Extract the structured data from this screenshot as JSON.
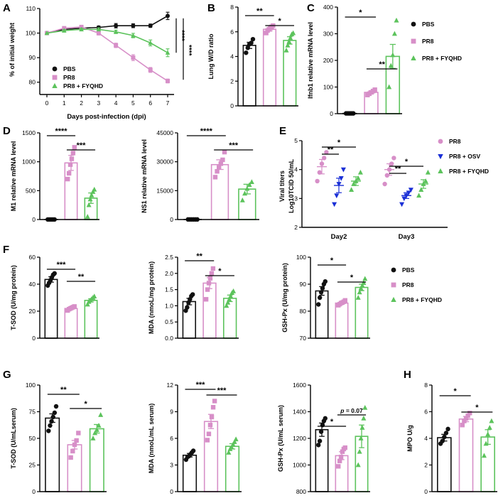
{
  "colors": {
    "pbs": "#111111",
    "pr8": "#d78fc8",
    "fyqhd": "#5cc35c",
    "osv": "#1a2fd6"
  },
  "chart_data": [
    {
      "id": "A",
      "panel": "A",
      "type": "line",
      "title": "",
      "xlabel": "Days post-infection (dpi)",
      "ylabel": "% of initial weight",
      "ylim": [
        75,
        110
      ],
      "yticks": [
        80,
        90,
        100,
        110
      ],
      "xticks": [
        0,
        1,
        2,
        3,
        4,
        5,
        6,
        7
      ],
      "series": [
        {
          "name": "PBS",
          "color": "pbs",
          "marker": "circle",
          "x": [
            0,
            1,
            2,
            3,
            4,
            5,
            6,
            7
          ],
          "y": [
            100,
            101.5,
            102,
            102.3,
            103,
            103,
            103,
            107
          ],
          "err": [
            0,
            0.5,
            0.5,
            0.6,
            0.9,
            0.8,
            0.7,
            1.5
          ]
        },
        {
          "name": "PR8",
          "color": "pr8",
          "marker": "square",
          "x": [
            0,
            1,
            2,
            3,
            4,
            5,
            6,
            7
          ],
          "y": [
            100,
            102,
            102.5,
            100,
            95,
            90,
            85,
            80.5
          ],
          "err": [
            0,
            0.6,
            0.6,
            0.8,
            0.9,
            1.2,
            1.0,
            0.8
          ]
        },
        {
          "name": "PR8 + FYQHD",
          "color": "fyqhd",
          "marker": "triangle",
          "x": [
            0,
            1,
            2,
            3,
            4,
            5,
            6,
            7
          ],
          "y": [
            100,
            101,
            101.5,
            101.5,
            100.5,
            99,
            96,
            92
          ],
          "err": [
            0,
            0.5,
            0.5,
            0.6,
            0.7,
            0.9,
            1.2,
            1.6
          ]
        }
      ],
      "annotations": [
        "****",
        "****"
      ]
    },
    {
      "id": "B",
      "panel": "B",
      "type": "bar",
      "title": "",
      "ylabel": "Lung W/D ratio",
      "ylim": [
        0,
        8
      ],
      "yticks": [
        0,
        2,
        4,
        6,
        8
      ],
      "series": [
        {
          "name": "PBS",
          "color": "pbs",
          "marker": "circle",
          "mean": 4.9,
          "sem": 0.25,
          "points": [
            4.3,
            4.7,
            5.0,
            5.1,
            5.4
          ]
        },
        {
          "name": "PR8",
          "color": "pr8",
          "marker": "square",
          "mean": 6.2,
          "sem": 0.15,
          "points": [
            5.9,
            6.1,
            6.2,
            6.3,
            6.4,
            6.5
          ]
        },
        {
          "name": "PR8 + FYQHD",
          "color": "fyqhd",
          "marker": "triangle",
          "mean": 5.3,
          "sem": 0.3,
          "points": [
            4.5,
            4.9,
            5.2,
            5.5,
            5.8,
            5.9
          ]
        }
      ],
      "sig": [
        {
          "a": 0,
          "b": 1,
          "label": "**"
        },
        {
          "a": 1,
          "b": 2,
          "label": "*"
        }
      ]
    },
    {
      "id": "C",
      "panel": "C",
      "type": "bar",
      "title": "",
      "ylabel": "Ifnb1 relative mRNA level",
      "ylim": [
        0,
        400
      ],
      "yticks": [
        0,
        100,
        200,
        300,
        400
      ],
      "series": [
        {
          "name": "PBS",
          "color": "pbs",
          "marker": "circle",
          "mean": 1,
          "sem": 0.5,
          "points": [
            1,
            1,
            1,
            1,
            1,
            1
          ]
        },
        {
          "name": "PR8",
          "color": "pr8",
          "marker": "square",
          "mean": 80,
          "sem": 5,
          "points": [
            70,
            75,
            80,
            85,
            90
          ]
        },
        {
          "name": "PR8 + FYQHD",
          "color": "fyqhd",
          "marker": "triangle",
          "mean": 215,
          "sem": 45,
          "points": [
            100,
            180,
            220,
            300,
            350
          ]
        }
      ],
      "sig": [
        {
          "a": 0,
          "b": 1,
          "label": "*"
        },
        {
          "a": 1,
          "b": 2,
          "label": "**"
        }
      ],
      "legend": [
        "PBS",
        "PR8",
        "PR8 + FYQHD"
      ]
    },
    {
      "id": "D1",
      "panel": "D",
      "type": "bar",
      "title": "",
      "ylabel": "M1 relative mRNA level",
      "ylim": [
        0,
        1500
      ],
      "yticks": [
        0,
        500,
        1000,
        1500
      ],
      "series": [
        {
          "name": "PBS",
          "color": "pbs",
          "marker": "circle",
          "mean": 1,
          "sem": 0.5,
          "points": [
            1,
            1,
            1,
            1,
            1,
            1
          ]
        },
        {
          "name": "PR8",
          "color": "pr8",
          "marker": "square",
          "mean": 980,
          "sem": 130,
          "points": [
            700,
            800,
            950,
            1050,
            1150,
            1250
          ]
        },
        {
          "name": "PR8 + FYQHD",
          "color": "fyqhd",
          "marker": "triangle",
          "mean": 370,
          "sem": 90,
          "points": [
            50,
            250,
            350,
            420,
            480,
            520
          ]
        }
      ],
      "sig": [
        {
          "a": 0,
          "b": 1,
          "label": "****"
        },
        {
          "a": 1,
          "b": 2,
          "label": "***"
        }
      ]
    },
    {
      "id": "D2",
      "panel": "",
      "type": "bar",
      "title": "",
      "ylabel": "NS1 relative mRNA level",
      "ylim": [
        0,
        45000
      ],
      "yticks": [
        0,
        15000,
        30000,
        45000
      ],
      "series": [
        {
          "name": "PBS",
          "color": "pbs",
          "marker": "circle",
          "mean": 50,
          "sem": 20,
          "points": [
            50,
            50,
            50,
            50,
            50,
            50
          ]
        },
        {
          "name": "PR8",
          "color": "pr8",
          "marker": "square",
          "mean": 28500,
          "sem": 2500,
          "points": [
            22000,
            25000,
            27000,
            29000,
            31000,
            35000
          ]
        },
        {
          "name": "PR8 + FYQHD",
          "color": "fyqhd",
          "marker": "triangle",
          "mean": 15800,
          "sem": 2500,
          "points": [
            10000,
            13500,
            16000,
            18000,
            19500
          ]
        }
      ],
      "sig": [
        {
          "a": 0,
          "b": 1,
          "label": "****"
        },
        {
          "a": 1,
          "b": 2,
          "label": "***"
        }
      ]
    },
    {
      "id": "E",
      "panel": "E",
      "type": "scatter",
      "title": "",
      "ylabel": "Viral titers",
      "ylabel2": "Log10TCID 50/mL",
      "ylim": [
        2,
        5
      ],
      "yticks": [
        2,
        3,
        4,
        5
      ],
      "categories": [
        "Day2",
        "Day3"
      ],
      "series": [
        {
          "name": "PR8",
          "color": "pr8",
          "marker": "circle",
          "mean": [
            4.1,
            4.0
          ],
          "sem": [
            0.25,
            0.2
          ],
          "points": [
            [
              3.6,
              3.9,
              4.2,
              4.4,
              4.6
            ],
            [
              3.5,
              3.8,
              4.0,
              4.2,
              4.4
            ]
          ]
        },
        {
          "name": "PR8 + OSV",
          "color": "osv",
          "marker": "invtriangle",
          "mean": [
            3.45,
            3.1
          ],
          "sem": [
            0.25,
            0.1
          ],
          "points": [
            [
              2.8,
              3.1,
              3.5,
              3.7,
              4.0
            ],
            [
              2.8,
              3.0,
              3.1,
              3.2,
              3.3
            ]
          ]
        },
        {
          "name": "PR8 + FYQHD",
          "color": "fyqhd",
          "marker": "triangle",
          "mean": [
            3.6,
            3.5
          ],
          "sem": [
            0.15,
            0.15
          ],
          "points": [
            [
              3.3,
              3.5,
              3.6,
              3.7,
              3.9
            ],
            [
              3.1,
              3.3,
              3.5,
              3.6,
              3.9
            ]
          ]
        }
      ],
      "sig": [
        {
          "cat": 0,
          "a": 0,
          "b": 1,
          "label": "**"
        },
        {
          "cat": 0,
          "a": 0,
          "b": 2,
          "label": "*"
        },
        {
          "cat": 1,
          "a": 0,
          "b": 1,
          "label": "**"
        },
        {
          "cat": 1,
          "a": 0,
          "b": 2,
          "label": "*"
        }
      ],
      "legend": [
        "PR8",
        "PR8 + OSV",
        "PR8 + FYQHD"
      ]
    },
    {
      "id": "F1",
      "panel": "F",
      "type": "bar",
      "title": "",
      "ylabel": "T-SOD (U/mg protein)",
      "ylim": [
        0,
        60
      ],
      "yticks": [
        0,
        20,
        40,
        60
      ],
      "series": [
        {
          "name": "PBS",
          "color": "pbs",
          "marker": "circle",
          "mean": 43.5,
          "sem": 2,
          "points": [
            39,
            41,
            43,
            45,
            47,
            48
          ]
        },
        {
          "name": "PR8",
          "color": "pr8",
          "marker": "square",
          "mean": 22,
          "sem": 0.7,
          "points": [
            20.5,
            21.5,
            22,
            22.5,
            23,
            23.5
          ]
        },
        {
          "name": "PR8 + FYQHD",
          "color": "fyqhd",
          "marker": "triangle",
          "mean": 28,
          "sem": 1.2,
          "points": [
            25,
            27,
            28,
            29,
            30,
            31
          ]
        }
      ],
      "sig": [
        {
          "a": 0,
          "b": 1,
          "label": "***"
        },
        {
          "a": 1,
          "b": 2,
          "label": "**"
        }
      ]
    },
    {
      "id": "F2",
      "panel": "",
      "type": "bar",
      "title": "",
      "ylabel": "MDA (nmoL/mg protein)",
      "ylim": [
        0,
        2.5
      ],
      "yticks": [
        0,
        0.5,
        1.0,
        1.5,
        2.0,
        2.5
      ],
      "series": [
        {
          "name": "PBS",
          "color": "pbs",
          "marker": "circle",
          "mean": 1.13,
          "sem": 0.1,
          "points": [
            0.85,
            0.95,
            1.1,
            1.2,
            1.3,
            1.35
          ]
        },
        {
          "name": "PR8",
          "color": "pr8",
          "marker": "square",
          "mean": 1.7,
          "sem": 0.17,
          "points": [
            1.2,
            1.5,
            1.7,
            1.85,
            2.0,
            2.15
          ]
        },
        {
          "name": "PR8 + FYQHD",
          "color": "fyqhd",
          "marker": "triangle",
          "mean": 1.23,
          "sem": 0.1,
          "points": [
            1.0,
            1.1,
            1.2,
            1.3,
            1.4,
            1.45
          ]
        }
      ],
      "sig": [
        {
          "a": 0,
          "b": 1,
          "label": "**"
        },
        {
          "a": 1,
          "b": 2,
          "label": "*"
        }
      ]
    },
    {
      "id": "F3",
      "panel": "",
      "type": "bar",
      "title": "",
      "ylabel": "GSH-Px (U/mg protein)",
      "ylim": [
        70,
        100
      ],
      "yticks": [
        70,
        80,
        90,
        100
      ],
      "series": [
        {
          "name": "PBS",
          "color": "pbs",
          "marker": "circle",
          "mean": 87.5,
          "sem": 1.6,
          "points": [
            82.5,
            85,
            87,
            88.5,
            90,
            91
          ]
        },
        {
          "name": "PR8",
          "color": "pr8",
          "marker": "square",
          "mean": 83,
          "sem": 0.4,
          "points": [
            82.2,
            82.6,
            83,
            83.2,
            83.5,
            84
          ]
        },
        {
          "name": "PR8 + FYQHD",
          "color": "fyqhd",
          "marker": "triangle",
          "mean": 88.8,
          "sem": 1.2,
          "points": [
            85,
            87,
            88.5,
            89.5,
            90.5,
            92
          ]
        }
      ],
      "sig": [
        {
          "a": 0,
          "b": 1,
          "label": "*"
        },
        {
          "a": 1,
          "b": 2,
          "label": "*"
        }
      ],
      "legend": [
        "PBS",
        "PR8",
        "PR8 + FYQHD"
      ]
    },
    {
      "id": "G1",
      "panel": "G",
      "type": "bar",
      "title": "",
      "ylabel": "T-SOD (U/mLserum)",
      "ylim": [
        0,
        100
      ],
      "yticks": [
        0,
        25,
        50,
        75,
        100
      ],
      "series": [
        {
          "name": "PBS",
          "color": "pbs",
          "marker": "circle",
          "mean": 69,
          "sem": 4,
          "points": [
            57,
            62,
            66,
            70,
            74,
            80
          ]
        },
        {
          "name": "PR8",
          "color": "pr8",
          "marker": "square",
          "mean": 44,
          "sem": 4,
          "points": [
            32,
            38,
            44,
            48,
            55
          ]
        },
        {
          "name": "PR8 + FYQHD",
          "color": "fyqhd",
          "marker": "triangle",
          "mean": 59,
          "sem": 4,
          "points": [
            50,
            55,
            58,
            62,
            72
          ]
        }
      ],
      "sig": [
        {
          "a": 0,
          "b": 1,
          "label": "**"
        },
        {
          "a": 1,
          "b": 2,
          "label": "*"
        }
      ]
    },
    {
      "id": "G2",
      "panel": "",
      "type": "bar",
      "title": "",
      "ylabel": "MDA (nmoL/mL serum)",
      "ylim": [
        0,
        12
      ],
      "yticks": [
        0,
        3,
        6,
        9,
        12
      ],
      "series": [
        {
          "name": "PBS",
          "color": "pbs",
          "marker": "circle",
          "mean": 4.1,
          "sem": 0.2,
          "points": [
            3.6,
            3.9,
            4.0,
            4.2,
            4.4,
            4.6
          ]
        },
        {
          "name": "PR8",
          "color": "pr8",
          "marker": "square",
          "mean": 7.9,
          "sem": 0.8,
          "points": [
            5.8,
            6.5,
            7.5,
            8.4,
            9.5,
            10.2
          ]
        },
        {
          "name": "PR8 + FYQHD",
          "color": "fyqhd",
          "marker": "triangle",
          "mean": 5.1,
          "sem": 0.3,
          "points": [
            4.4,
            4.8,
            5.0,
            5.3,
            5.6,
            5.9
          ]
        }
      ],
      "sig": [
        {
          "a": 0,
          "b": 1,
          "label": "***"
        },
        {
          "a": 1,
          "b": 2,
          "label": "***"
        }
      ]
    },
    {
      "id": "G3",
      "panel": "",
      "type": "bar",
      "title": "",
      "ylabel": "GSH-Px (U/mL serum)",
      "ylim": [
        800,
        1600
      ],
      "yticks": [
        800,
        1000,
        1200,
        1400,
        1600
      ],
      "series": [
        {
          "name": "PBS",
          "color": "pbs",
          "marker": "circle",
          "mean": 1265,
          "sem": 50,
          "points": [
            1150,
            1180,
            1250,
            1300,
            1330,
            1350
          ]
        },
        {
          "name": "PR8",
          "color": "pr8",
          "marker": "square",
          "mean": 1070,
          "sem": 30,
          "points": [
            990,
            1030,
            1060,
            1100,
            1120,
            1130
          ]
        },
        {
          "name": "PR8 + FYQHD",
          "color": "fyqhd",
          "marker": "triangle",
          "mean": 1215,
          "sem": 85,
          "points": [
            1000,
            1100,
            1200,
            1280,
            1350,
            1430
          ]
        }
      ],
      "sig": [
        {
          "a": 0,
          "b": 1,
          "label": "*"
        },
        {
          "a": 1,
          "b": 2,
          "label": "p = 0.07"
        }
      ]
    },
    {
      "id": "H",
      "panel": "H",
      "type": "bar",
      "title": "",
      "ylabel": "MPO U/g",
      "ylim": [
        0,
        8
      ],
      "yticks": [
        0,
        2,
        4,
        6,
        8
      ],
      "series": [
        {
          "name": "PBS",
          "color": "pbs",
          "marker": "circle",
          "mean": 4.05,
          "sem": 0.25,
          "points": [
            3.6,
            3.8,
            4.1,
            4.4,
            4.7
          ]
        },
        {
          "name": "PR8",
          "color": "pr8",
          "marker": "square",
          "mean": 5.45,
          "sem": 0.2,
          "points": [
            5.0,
            5.3,
            5.5,
            5.7,
            5.9
          ]
        },
        {
          "name": "PR8 + FYQHD",
          "color": "fyqhd",
          "marker": "triangle",
          "mean": 4.1,
          "sem": 0.55,
          "points": [
            2.7,
            3.6,
            4.3,
            4.8,
            5.3
          ]
        }
      ],
      "sig": [
        {
          "a": 0,
          "b": 1,
          "label": "*"
        },
        {
          "a": 1,
          "b": 2,
          "label": "*"
        }
      ]
    }
  ]
}
